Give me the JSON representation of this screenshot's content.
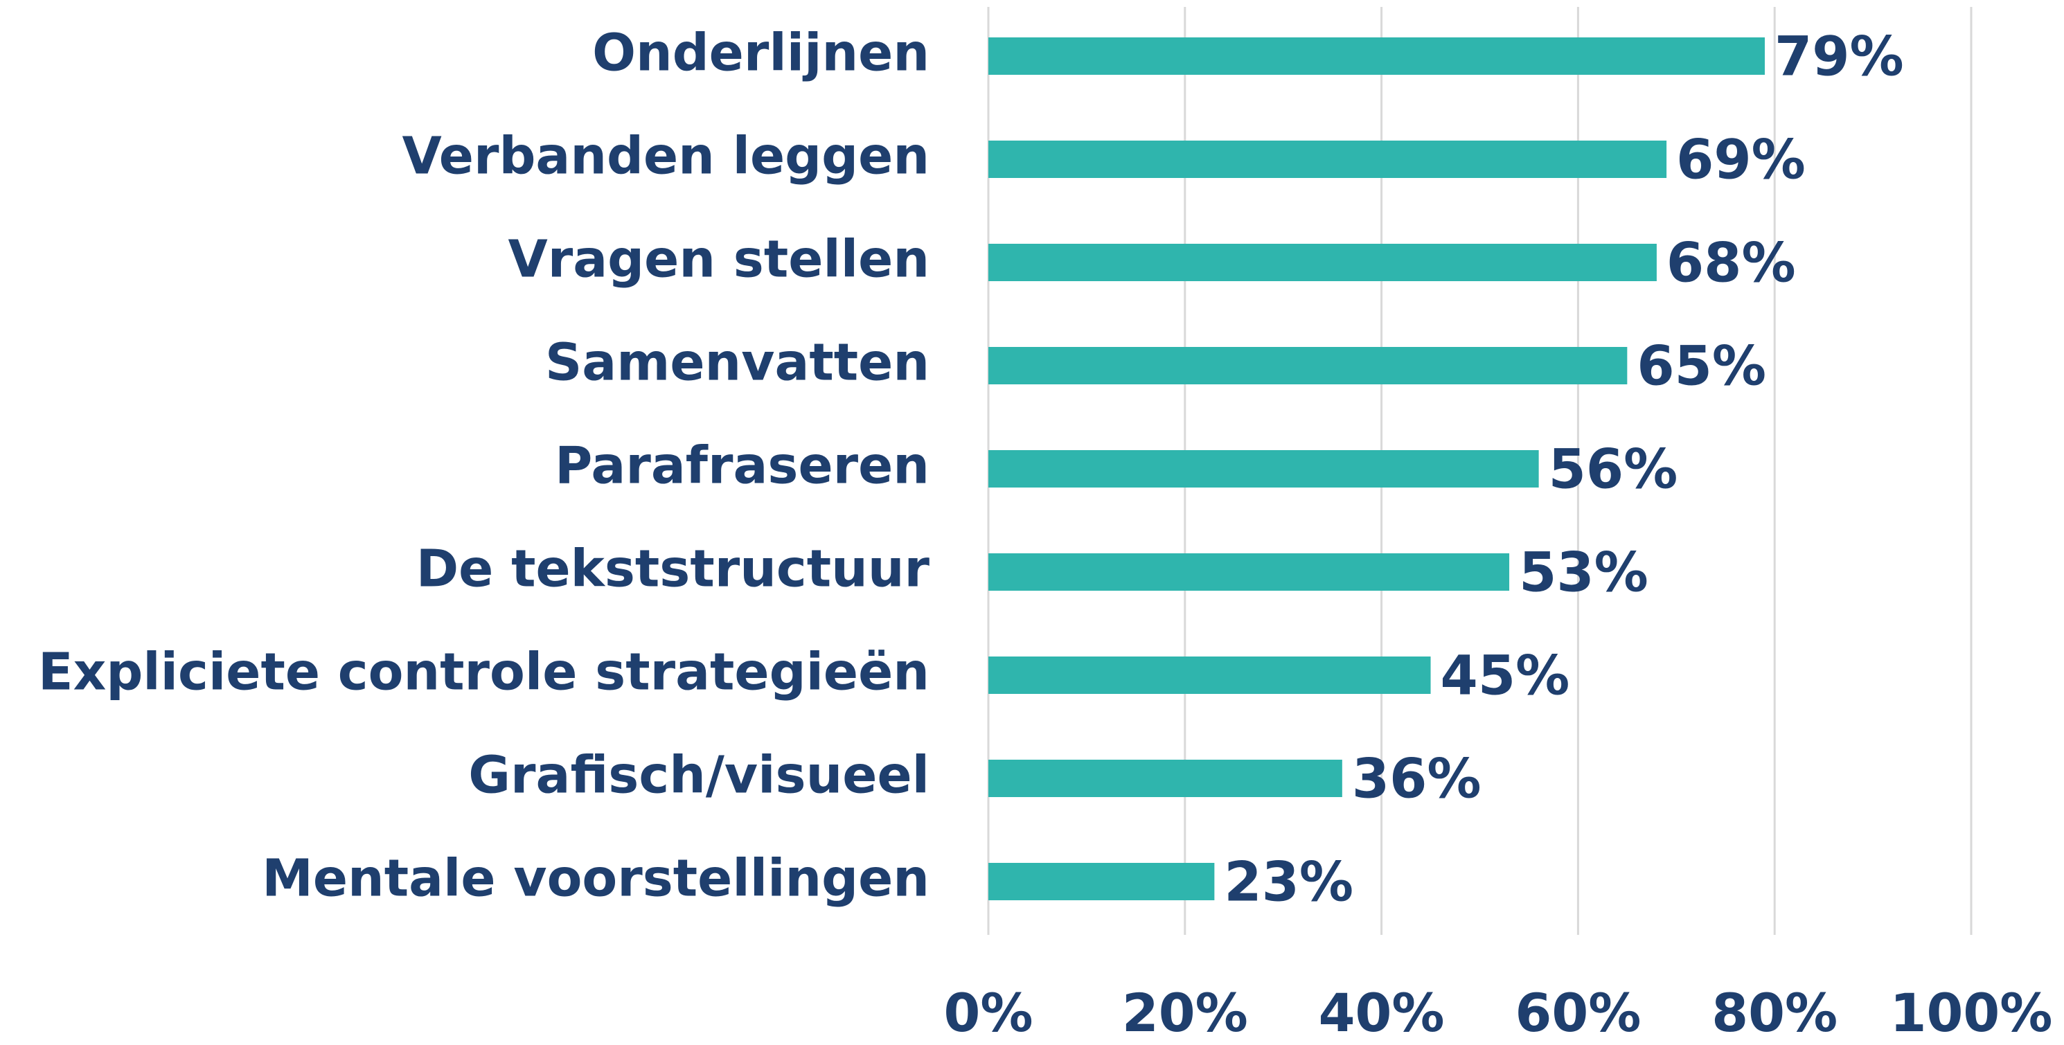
{
  "chart_data": {
    "type": "bar",
    "orientation": "horizontal",
    "categories": [
      "Onderlijnen",
      "Verbanden leggen",
      "Vragen stellen",
      "Samenvatten",
      "Parafraseren",
      "De tekststructuur",
      "Expliciete controle strategieën",
      "Grafisch/visueel",
      "Mentale voorstellingen"
    ],
    "values": [
      79,
      69,
      68,
      65,
      56,
      53,
      45,
      36,
      23
    ],
    "value_labels": [
      "79%",
      "69%",
      "68%",
      "65%",
      "56%",
      "53%",
      "45%",
      "36%",
      "23%"
    ],
    "color": "#2fb5ad",
    "xlim": [
      0,
      100
    ],
    "xticks": [
      {
        "value": 0,
        "label": "0%"
      },
      {
        "value": 20,
        "label": "20%"
      },
      {
        "value": 40,
        "label": "40%"
      },
      {
        "value": 60,
        "label": "60%"
      },
      {
        "value": 80,
        "label": "80%"
      },
      {
        "value": 100,
        "label": "100%"
      }
    ],
    "grid": true
  }
}
